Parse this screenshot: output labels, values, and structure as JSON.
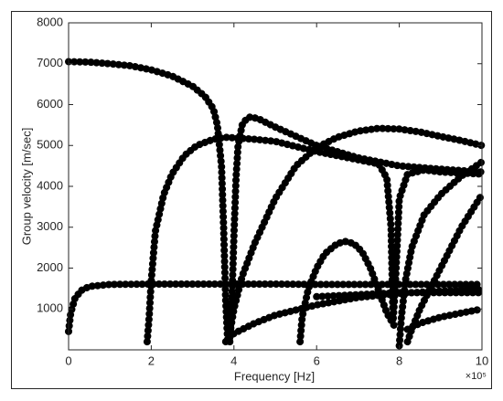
{
  "chart_data": {
    "type": "scatter",
    "xlabel": "Frequency [Hz]",
    "ylabel": "Group velocity [m/sec]",
    "x_multiplier": "×10⁵",
    "xlim": [
      0,
      10
    ],
    "xticks": [
      0,
      2,
      4,
      6,
      8,
      10
    ],
    "ylim": [
      0,
      8000
    ],
    "yticks": [
      1000,
      2000,
      3000,
      4000,
      5000,
      6000,
      7000,
      8000
    ],
    "color": "#000000",
    "series": [
      {
        "x": [
          0,
          0.5,
          1,
          1.5,
          2,
          2.5,
          3,
          3.3,
          3.5,
          3.6,
          3.7,
          3.75,
          3.8,
          3.85
        ],
        "y": [
          7050,
          7040,
          7000,
          6950,
          6850,
          6700,
          6450,
          6200,
          5900,
          5500,
          4500,
          3000,
          1200,
          200
        ]
      },
      {
        "x": [
          1.9,
          1.95,
          2.0,
          2.1,
          2.3,
          2.5,
          2.8,
          3.1,
          3.5,
          3.8,
          4.5,
          5,
          6,
          7,
          7.5,
          7.7,
          7.8,
          7.85,
          7.9,
          8.0,
          8.2,
          8.6,
          9,
          10
        ],
        "y": [
          200,
          800,
          1700,
          2900,
          3800,
          4300,
          4750,
          5000,
          5150,
          5200,
          5150,
          5100,
          4850,
          4650,
          4550,
          4200,
          3000,
          700,
          1500,
          3700,
          4300,
          4400,
          4350,
          4300
        ]
      },
      {
        "x": [
          3.9,
          3.95,
          4.0,
          4.05,
          4.1,
          4.2,
          4.3,
          4.4,
          4.6,
          5,
          6,
          7,
          8,
          9,
          10
        ],
        "y": [
          200,
          1200,
          2800,
          4200,
          5000,
          5500,
          5650,
          5700,
          5650,
          5450,
          5000,
          4700,
          4500,
          4420,
          4350
        ]
      },
      {
        "x": [
          3.9,
          4.0,
          4.2,
          4.5,
          5,
          5.5,
          6,
          6.5,
          7,
          7.5,
          8,
          8.5,
          9,
          9.5,
          10
        ],
        "y": [
          400,
          1000,
          1800,
          2600,
          3700,
          4500,
          4950,
          5200,
          5350,
          5420,
          5400,
          5330,
          5220,
          5120,
          5000
        ]
      },
      {
        "x": [
          0,
          0.05,
          0.15,
          0.3,
          0.5,
          1,
          2,
          3,
          4,
          5,
          6,
          7,
          8,
          9,
          10
        ],
        "y": [
          450,
          900,
          1250,
          1450,
          1550,
          1600,
          1610,
          1610,
          1610,
          1610,
          1600,
          1600,
          1600,
          1600,
          1600
        ]
      },
      {
        "x": [
          3.8,
          4.0,
          4.5,
          5,
          6,
          7,
          8,
          9,
          10
        ],
        "y": [
          200,
          400,
          650,
          850,
          1100,
          1280,
          1380,
          1440,
          1480
        ]
      },
      {
        "x": [
          5.6,
          5.65,
          5.8,
          6.0,
          6.2,
          6.5,
          6.7,
          6.9,
          7.1,
          7.3,
          7.5,
          7.7,
          7.9
        ],
        "y": [
          200,
          800,
          1500,
          2000,
          2350,
          2600,
          2650,
          2600,
          2400,
          2000,
          1450,
          900,
          550
        ]
      },
      {
        "x": [
          8.0,
          8.05,
          8.15,
          8.3,
          8.6,
          9,
          9.5,
          10
        ],
        "y": [
          100,
          800,
          1700,
          2500,
          3300,
          3800,
          4250,
          4600
        ]
      },
      {
        "x": [
          8.2,
          8.3,
          8.5,
          9,
          9.5,
          10
        ],
        "y": [
          200,
          500,
          1000,
          2000,
          3000,
          3800
        ]
      },
      {
        "x": [
          8.2,
          8.5,
          9,
          9.5,
          10
        ],
        "y": [
          500,
          650,
          800,
          900,
          1000
        ]
      },
      {
        "x": [
          6,
          7,
          8,
          9,
          10
        ],
        "y": [
          1300,
          1350,
          1400,
          1400,
          1400
        ]
      }
    ]
  }
}
